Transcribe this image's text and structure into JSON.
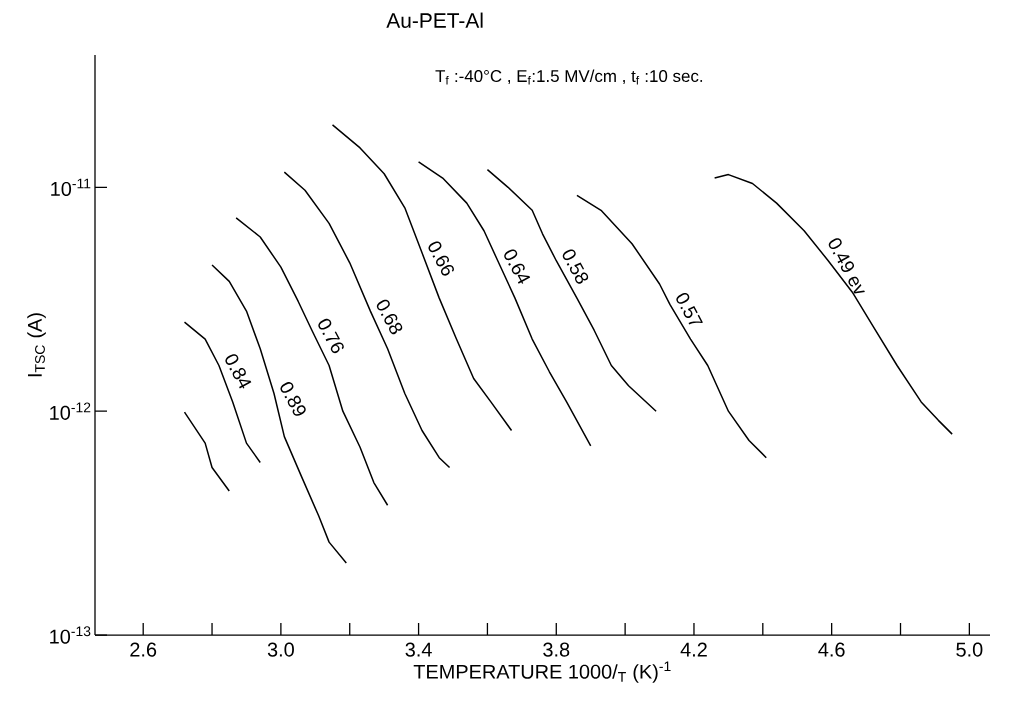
{
  "chart_data": {
    "type": "line",
    "title": "Au-PET-Al",
    "subtitle": "T$_{f}$ :-40°C ,  E$_{f}$:1.5 MV/cm ,  t$_{f}$ :10 sec.",
    "xlabel": "TEMPERATURE  1000/$_{T}$  (K)$^{-1}$",
    "ylabel": "I$_{TSC}$ (A)",
    "log": "y",
    "marker": "none",
    "line_style": "solid",
    "xlim": [
      2.46,
      5.06
    ],
    "ylim": [
      1e-13,
      3.9e-11
    ],
    "xticks": [
      2.6,
      {
        "value": 2.8,
        "label": null
      },
      {
        "value": 3.0,
        "label": "3.0"
      },
      {
        "value": 3.2,
        "label": null
      },
      3.4,
      {
        "value": 3.6,
        "label": null
      },
      3.8,
      {
        "value": 4.0,
        "label": null
      },
      4.2,
      {
        "value": 4.4,
        "label": null
      },
      4.6,
      {
        "value": 4.8,
        "label": null
      },
      {
        "value": 5.0,
        "label": "5.0"
      }
    ],
    "yticks": [
      {
        "value": 1e-13,
        "label": "10$^{-13}$"
      },
      {
        "value": 1e-12,
        "label": "10$^{-12}$"
      },
      {
        "value": 1e-11,
        "label": "10$^{-11}$"
      }
    ],
    "series": [
      {
        "color": "#000000",
        "x": [
          2.72,
          2.78,
          2.8,
          2.85
        ],
        "values": [
          9.9e-13,
          7.2e-13,
          5.6e-13,
          4.4e-13
        ]
      },
      {
        "name": "0.84",
        "color": "#000000",
        "x": [
          2.72,
          2.78,
          2.82,
          2.86,
          2.9,
          2.94
        ],
        "values": [
          2.5e-12,
          2.1e-12,
          1.6e-12,
          1.1e-12,
          7.2e-13,
          5.9e-13
        ]
      },
      {
        "name": "0.89",
        "color": "#000000",
        "x": [
          2.8,
          2.85,
          2.9,
          2.94,
          2.98,
          3.01,
          3.06,
          3.11,
          3.14,
          3.19
        ],
        "values": [
          4.5e-12,
          3.8e-12,
          2.8e-12,
          1.9e-12,
          1.2e-12,
          7.7e-13,
          5.1e-13,
          3.4e-13,
          2.6e-13,
          2.1e-13
        ]
      },
      {
        "name": "0.76",
        "color": "#000000",
        "x": [
          2.87,
          2.94,
          3.0,
          3.05,
          3.09,
          3.14,
          3.18,
          3.23,
          3.27,
          3.31
        ],
        "values": [
          7.3e-12,
          6e-12,
          4.4e-12,
          3.1e-12,
          2.3e-12,
          1.6e-12,
          1e-12,
          6.9e-13,
          4.8e-13,
          3.8e-13
        ]
      },
      {
        "name": "0.68",
        "color": "#000000",
        "x": [
          3.01,
          3.07,
          3.14,
          3.2,
          3.26,
          3.31,
          3.36,
          3.41,
          3.46,
          3.49
        ],
        "values": [
          1.17e-11,
          9.7e-12,
          6.9e-12,
          4.6e-12,
          2.8e-12,
          1.9e-12,
          1.2e-12,
          8.2e-13,
          6.2e-13,
          5.6e-13
        ]
      },
      {
        "name": "0.66",
        "color": "#000000",
        "x": [
          3.15,
          3.23,
          3.3,
          3.36,
          3.41,
          3.46,
          3.51,
          3.56,
          3.61,
          3.67
        ],
        "values": [
          1.9e-11,
          1.5e-11,
          1.15e-11,
          8.1e-12,
          5.1e-12,
          3.2e-12,
          2.1e-12,
          1.4e-12,
          1.1e-12,
          8.2e-13
        ]
      },
      {
        "name": "0.64",
        "color": "#000000",
        "x": [
          3.4,
          3.47,
          3.54,
          3.59,
          3.63,
          3.68,
          3.73,
          3.78,
          3.83,
          3.9
        ],
        "values": [
          1.3e-11,
          1.1e-11,
          8.5e-12,
          6.4e-12,
          4.7e-12,
          3.2e-12,
          2.1e-12,
          1.5e-12,
          1.1e-12,
          7e-13
        ]
      },
      {
        "name": "0.58",
        "color": "#000000",
        "x": [
          3.6,
          3.66,
          3.73,
          3.76,
          3.8,
          3.86,
          3.91,
          3.96,
          4.01,
          4.09
        ],
        "values": [
          1.2e-11,
          1e-11,
          7.9e-12,
          6.2e-12,
          4.7e-12,
          3.2e-12,
          2.3e-12,
          1.6e-12,
          1.3e-12,
          1e-12
        ]
      },
      {
        "name": "0.57",
        "color": "#000000",
        "x": [
          3.86,
          3.93,
          4.02,
          4.1,
          4.13,
          4.19,
          4.24,
          4.3,
          4.36,
          4.41
        ],
        "values": [
          9.2e-12,
          7.9e-12,
          5.6e-12,
          3.7e-12,
          3e-12,
          2.1e-12,
          1.6e-12,
          1e-12,
          7.4e-13,
          6.2e-13
        ]
      },
      {
        "name": "0.49 ev",
        "color": "#000000",
        "x": [
          4.26,
          4.3,
          4.37,
          4.44,
          4.52,
          4.59,
          4.66,
          4.72,
          4.79,
          4.86,
          4.91,
          4.95
        ],
        "values": [
          1.1e-11,
          1.14e-11,
          1.04e-11,
          8.5e-12,
          6.4e-12,
          4.7e-12,
          3.4e-12,
          2.4e-12,
          1.6e-12,
          1.1e-12,
          9.1e-13,
          7.9e-13
        ]
      }
    ]
  }
}
